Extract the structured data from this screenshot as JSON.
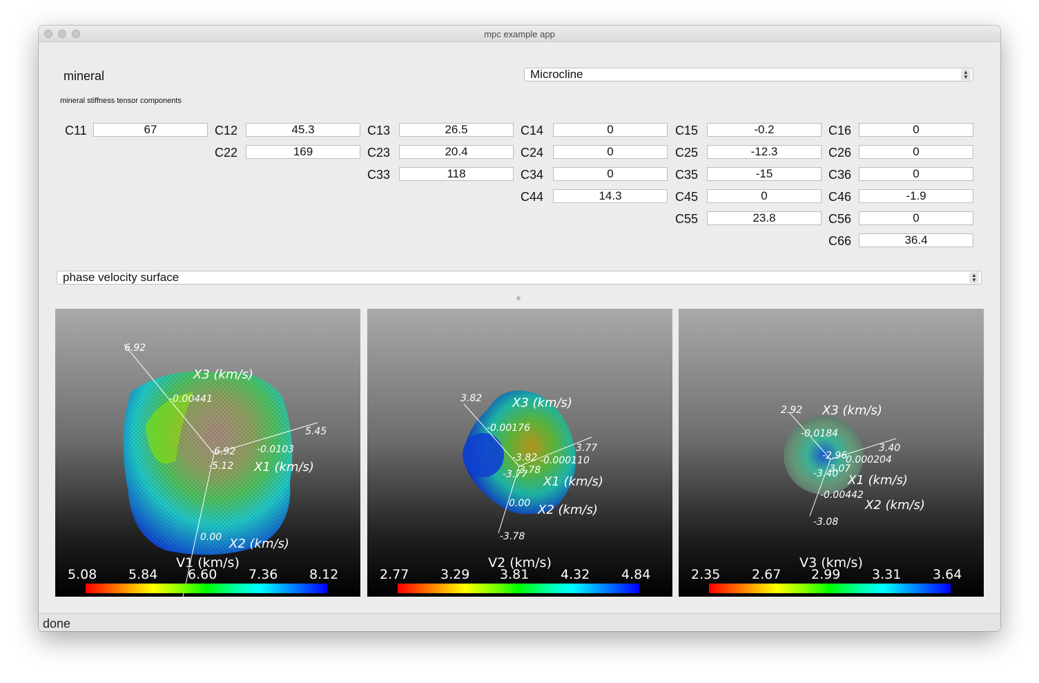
{
  "window": {
    "title": "mpc example app"
  },
  "mineral": {
    "label": "mineral",
    "selected": "Microcline"
  },
  "tensor": {
    "section_label": "mineral stiffness tensor components",
    "components": [
      {
        "name": "C11",
        "value": "67"
      },
      {
        "name": "C12",
        "value": "45.3"
      },
      {
        "name": "C13",
        "value": "26.5"
      },
      {
        "name": "C14",
        "value": "0"
      },
      {
        "name": "C15",
        "value": "-0.2"
      },
      {
        "name": "C16",
        "value": "0"
      },
      {
        "name": "C22",
        "value": "169"
      },
      {
        "name": "C23",
        "value": "20.4"
      },
      {
        "name": "C24",
        "value": "0"
      },
      {
        "name": "C25",
        "value": "-12.3"
      },
      {
        "name": "C26",
        "value": "0"
      },
      {
        "name": "C33",
        "value": "118"
      },
      {
        "name": "C34",
        "value": "0"
      },
      {
        "name": "C35",
        "value": "-15"
      },
      {
        "name": "C36",
        "value": "0"
      },
      {
        "name": "C44",
        "value": "14.3"
      },
      {
        "name": "C45",
        "value": "0"
      },
      {
        "name": "C46",
        "value": "-1.9"
      },
      {
        "name": "C55",
        "value": "23.8"
      },
      {
        "name": "C56",
        "value": "0"
      },
      {
        "name": "C66",
        "value": "36.4"
      }
    ]
  },
  "plot_type": {
    "selected": "phase velocity surface"
  },
  "views": [
    {
      "title": "V1 (km/s)",
      "ticks": [
        "5.08",
        "5.84",
        "6.60",
        "7.36",
        "8.12"
      ],
      "axis_labels": {
        "x1": "X1 (km/s)",
        "x2": "X2 (km/s)",
        "x3": "X3 (km/s)"
      },
      "annotations": [
        "6.92",
        "-0.00441",
        "5.45",
        "-0.0103",
        "-6.92",
        "-5.12",
        "0.00"
      ]
    },
    {
      "title": "V2 (km/s)",
      "ticks": [
        "2.77",
        "3.29",
        "3.81",
        "4.32",
        "4.84"
      ],
      "axis_labels": {
        "x1": "X1 (km/s)",
        "x2": "X2 (km/s)",
        "x3": "X3 (km/s)"
      },
      "annotations": [
        "3.82",
        "-0.00176",
        "3.77",
        "-3.82",
        "-0.000110",
        "-3.77",
        "3.78",
        "0.00",
        "-3.78"
      ]
    },
    {
      "title": "V3 (km/s)",
      "ticks": [
        "2.35",
        "2.67",
        "2.99",
        "3.31",
        "3.64"
      ],
      "axis_labels": {
        "x1": "X1 (km/s)",
        "x2": "X2 (km/s)",
        "x3": "X3 (km/s)"
      },
      "annotations": [
        "2.92",
        "-0.0184",
        "3.40",
        "-2.96",
        "0.000204",
        "-3.40",
        "3.07",
        "-0.00442",
        "-3.08"
      ]
    }
  ],
  "status": {
    "text": "done"
  },
  "colors": {
    "colormap": [
      "#ff0000",
      "#ffff00",
      "#00ff00",
      "#00ffff",
      "#0000ff"
    ]
  }
}
